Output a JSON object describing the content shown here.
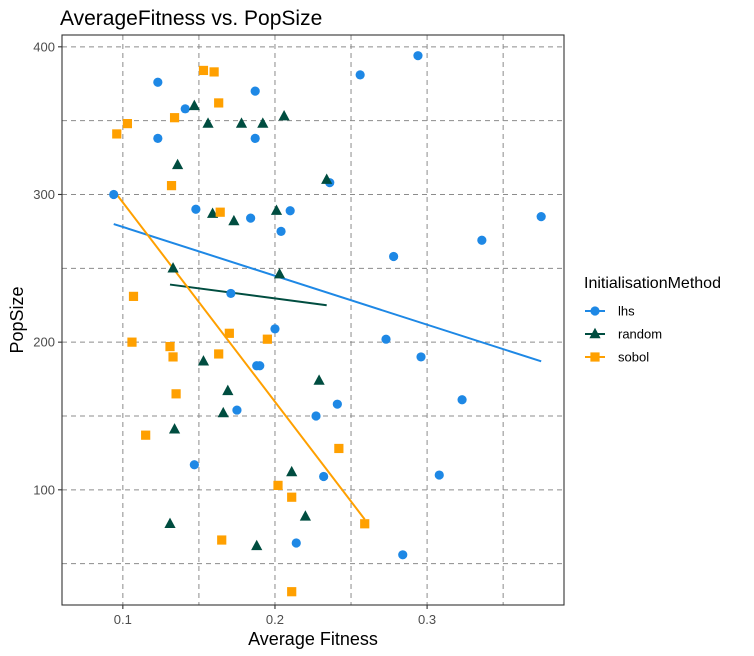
{
  "chart_data": {
    "type": "scatter",
    "title": "AverageFitness vs. PopSize",
    "xlabel": "Average Fitness",
    "ylabel": "PopSize",
    "xlim": [
      0.06,
      0.39
    ],
    "ylim": [
      22,
      408
    ],
    "x_ticks": [
      0.1,
      0.2,
      0.3
    ],
    "x_tick_labels": [
      "0.1",
      "0.2",
      "0.3"
    ],
    "x_minor_grid": [
      0.15,
      0.25,
      0.35
    ],
    "y_ticks": [
      100,
      200,
      300,
      400
    ],
    "y_tick_labels": [
      "100",
      "200",
      "300",
      "400"
    ],
    "y_minor_grid": [
      50,
      150,
      250,
      350
    ],
    "grid": "dashed",
    "legend": {
      "title": "InitialisationMethod",
      "position": "right",
      "entries": [
        "lhs",
        "random",
        "sobol"
      ]
    },
    "series": [
      {
        "name": "lhs",
        "color": "#1e88e5",
        "marker": "circle",
        "points": [
          [
            0.094,
            300
          ],
          [
            0.123,
            376
          ],
          [
            0.123,
            338
          ],
          [
            0.141,
            358
          ],
          [
            0.147,
            117
          ],
          [
            0.148,
            290
          ],
          [
            0.171,
            233
          ],
          [
            0.175,
            154
          ],
          [
            0.184,
            284
          ],
          [
            0.187,
            370
          ],
          [
            0.187,
            338
          ],
          [
            0.188,
            184
          ],
          [
            0.19,
            184
          ],
          [
            0.2,
            209
          ],
          [
            0.204,
            275
          ],
          [
            0.21,
            289
          ],
          [
            0.214,
            64
          ],
          [
            0.227,
            150
          ],
          [
            0.232,
            109
          ],
          [
            0.236,
            308
          ],
          [
            0.241,
            158
          ],
          [
            0.256,
            381
          ],
          [
            0.273,
            202
          ],
          [
            0.278,
            258
          ],
          [
            0.284,
            56
          ],
          [
            0.294,
            394
          ],
          [
            0.296,
            190
          ],
          [
            0.308,
            110
          ],
          [
            0.323,
            161
          ],
          [
            0.336,
            269
          ],
          [
            0.375,
            285
          ]
        ],
        "trend": [
          [
            0.094,
            280
          ],
          [
            0.375,
            187
          ]
        ]
      },
      {
        "name": "random",
        "color": "#004d40",
        "marker": "triangle",
        "points": [
          [
            0.131,
            77
          ],
          [
            0.133,
            250
          ],
          [
            0.134,
            141
          ],
          [
            0.136,
            320
          ],
          [
            0.147,
            360
          ],
          [
            0.153,
            187
          ],
          [
            0.156,
            348
          ],
          [
            0.159,
            287
          ],
          [
            0.166,
            152
          ],
          [
            0.169,
            167
          ],
          [
            0.173,
            282
          ],
          [
            0.178,
            348
          ],
          [
            0.188,
            62
          ],
          [
            0.192,
            348
          ],
          [
            0.201,
            289
          ],
          [
            0.203,
            246
          ],
          [
            0.206,
            353
          ],
          [
            0.211,
            112
          ],
          [
            0.22,
            82
          ],
          [
            0.229,
            174
          ],
          [
            0.234,
            310
          ]
        ],
        "trend": [
          [
            0.131,
            239
          ],
          [
            0.234,
            225
          ]
        ]
      },
      {
        "name": "sobol",
        "color": "#ffa000",
        "marker": "square",
        "points": [
          [
            0.096,
            341
          ],
          [
            0.103,
            348
          ],
          [
            0.106,
            200
          ],
          [
            0.107,
            231
          ],
          [
            0.115,
            137
          ],
          [
            0.131,
            197
          ],
          [
            0.132,
            306
          ],
          [
            0.133,
            190
          ],
          [
            0.134,
            352
          ],
          [
            0.135,
            165
          ],
          [
            0.153,
            384
          ],
          [
            0.16,
            383
          ],
          [
            0.163,
            362
          ],
          [
            0.163,
            192
          ],
          [
            0.164,
            288
          ],
          [
            0.165,
            66
          ],
          [
            0.17,
            206
          ],
          [
            0.195,
            202
          ],
          [
            0.202,
            103
          ],
          [
            0.211,
            95
          ],
          [
            0.211,
            31
          ],
          [
            0.242,
            128
          ],
          [
            0.259,
            77
          ]
        ],
        "trend": [
          [
            0.096,
            300
          ],
          [
            0.259,
            80
          ]
        ]
      }
    ]
  }
}
